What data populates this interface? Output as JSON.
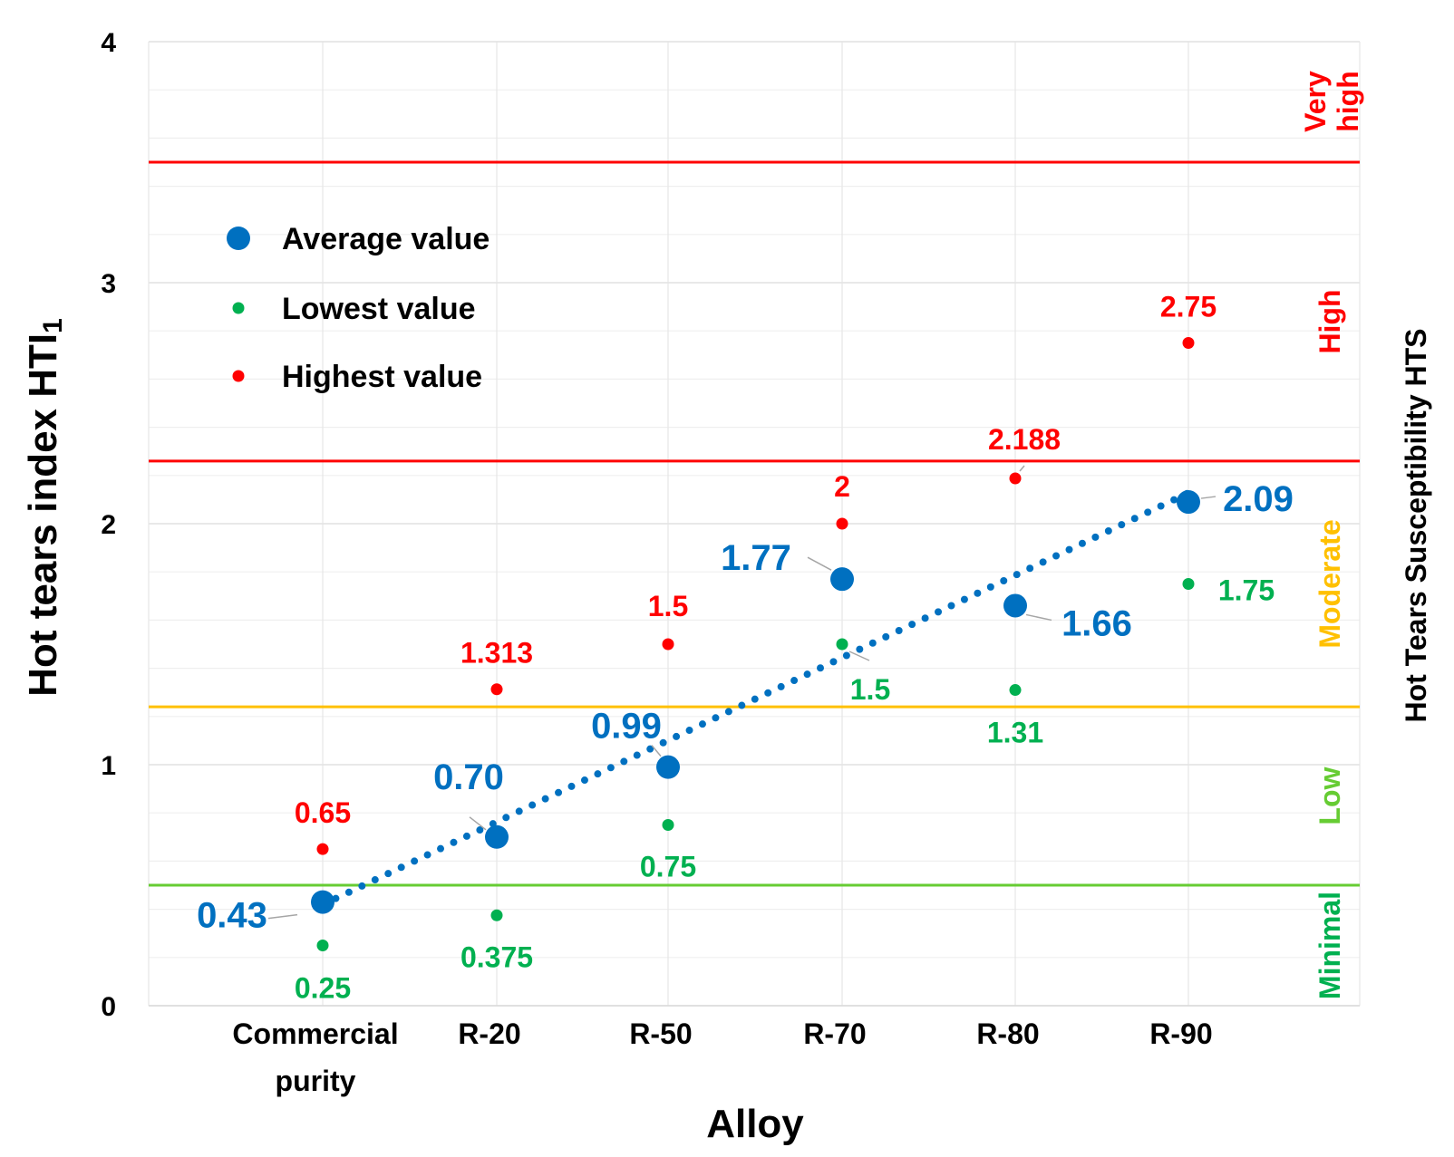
{
  "chart_data": {
    "type": "scatter",
    "title": "",
    "xlabel": "Alloy",
    "ylabel": "Hot tears index HTI",
    "ylabel_subscript": "1",
    "ylabel_right": "Hot Tears Susceptibility HTS",
    "ylim": [
      0,
      4
    ],
    "yticks": [
      "0",
      "1",
      "2",
      "3",
      "4"
    ],
    "grid": true,
    "legend_position": "top-left",
    "categories": [
      [
        "Commercial",
        "purity"
      ],
      [
        "R-20"
      ],
      [
        "R-50"
      ],
      [
        "R-70"
      ],
      [
        "R-80"
      ],
      [
        "R-90"
      ]
    ],
    "series": [
      {
        "name": "Average value",
        "color": "#0070C0",
        "values": [
          0.43,
          0.7,
          0.99,
          1.77,
          1.66,
          2.09
        ],
        "labels": [
          "0.43",
          "0.70",
          "0.99",
          "1.77",
          "1.66",
          "2.09"
        ]
      },
      {
        "name": "Lowest value",
        "color": "#00B050",
        "values": [
          0.25,
          0.375,
          0.75,
          1.5,
          1.31,
          1.75
        ],
        "labels": [
          "0.25",
          "0.375",
          "0.75",
          "1.5",
          "1.31",
          "1.75"
        ]
      },
      {
        "name": "Highest value",
        "color": "#FF0000",
        "values": [
          0.65,
          1.313,
          1.5,
          2,
          2.188,
          2.75
        ],
        "labels": [
          "0.65",
          "1.313",
          "1.5",
          "2",
          "2.188",
          "2.75"
        ]
      }
    ],
    "trendline": {
      "series": "Average value",
      "style": "dotted",
      "color": "#0070C0"
    },
    "thresholds": [
      {
        "value": 0.5,
        "color": "#66CC33"
      },
      {
        "value": 1.24,
        "color": "#FFC000"
      },
      {
        "value": 2.26,
        "color": "#FF0000"
      },
      {
        "value": 3.5,
        "color": "#FF0000"
      }
    ],
    "zones": [
      {
        "label": "Minimal",
        "color": "#00B050"
      },
      {
        "label": "Low",
        "color": "#66CC33"
      },
      {
        "label": "Moderate",
        "color": "#FFC000"
      },
      {
        "label": "High",
        "color": "#FF0000"
      },
      {
        "label": [
          "Very",
          "high"
        ],
        "color": "#FF0000"
      }
    ]
  }
}
